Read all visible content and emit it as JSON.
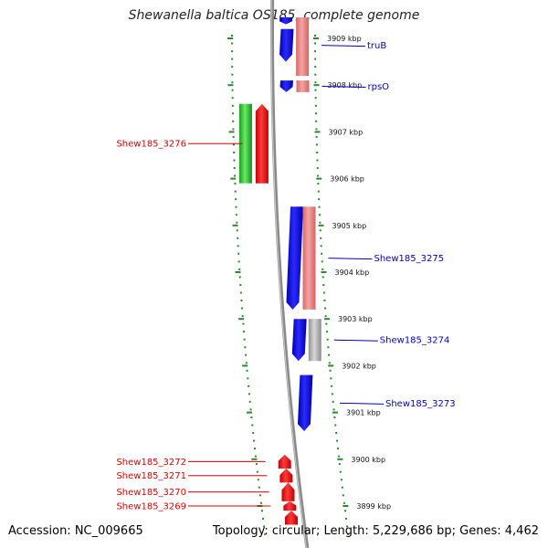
{
  "title": "Shewanella baltica OS185, complete genome",
  "footer": {
    "accession": "Accession: NC_009665",
    "summary": "Topology: circular; Length: 5,229,686 bp; Genes: 4,462"
  },
  "chart_data": {
    "type": "genome-map",
    "title": "Shewanella baltica OS185, complete genome",
    "unit": "kbp",
    "visible_range_kbp": [
      3898.6,
      3909.4
    ],
    "ticks": [
      {
        "kbp": 3909,
        "label": "3909 kbp"
      },
      {
        "kbp": 3908,
        "label": "3908 kbp"
      },
      {
        "kbp": 3907,
        "label": "3907 kbp"
      },
      {
        "kbp": 3906,
        "label": "3906 kbp"
      },
      {
        "kbp": 3905,
        "label": "3905 kbp"
      },
      {
        "kbp": 3904,
        "label": "3904 kbp"
      },
      {
        "kbp": 3903,
        "label": "3903 kbp"
      },
      {
        "kbp": 3902,
        "label": "3902 kbp"
      },
      {
        "kbp": 3901,
        "label": "3901 kbp"
      },
      {
        "kbp": 3900,
        "label": "3900 kbp"
      },
      {
        "kbp": 3899,
        "label": "3899 kbp"
      }
    ],
    "tracks": [
      {
        "id": "left-green",
        "features": [
          {
            "start_kbp": 3905.9,
            "end_kbp": 3907.6
          }
        ]
      },
      {
        "id": "left-red",
        "features": [
          {
            "start_kbp": 3905.9,
            "end_kbp": 3907.6,
            "label": "Shew185_3276"
          },
          {
            "start_kbp": 3899.8,
            "end_kbp": 3900.1,
            "label": "Shew185_3272"
          },
          {
            "start_kbp": 3899.5,
            "end_kbp": 3899.8,
            "label": "Shew185_3271"
          },
          {
            "start_kbp": 3899.1,
            "end_kbp": 3899.5,
            "label": "Shew185_3270"
          },
          {
            "start_kbp": 3898.9,
            "end_kbp": 3899.1,
            "label": "Shew185_3269"
          },
          {
            "start_kbp": 3898.6,
            "end_kbp": 3898.9
          }
        ]
      },
      {
        "id": "right-blue",
        "features": [
          {
            "start_kbp": 3909.3,
            "end_kbp": 3909.45
          },
          {
            "start_kbp": 3908.5,
            "end_kbp": 3909.2,
            "label": "truB"
          },
          {
            "start_kbp": 3907.85,
            "end_kbp": 3908.1,
            "label": "rpsO"
          },
          {
            "start_kbp": 3903.2,
            "end_kbp": 3905.4,
            "label": "Shew185_3275"
          },
          {
            "start_kbp": 3902.1,
            "end_kbp": 3903.0,
            "label": "Shew185_3274"
          },
          {
            "start_kbp": 3900.6,
            "end_kbp": 3901.8,
            "label": "Shew185_3273"
          }
        ]
      },
      {
        "id": "right-pink",
        "features": [
          {
            "start_kbp": 3908.2,
            "end_kbp": 3909.45
          },
          {
            "start_kbp": 3907.85,
            "end_kbp": 3908.1
          },
          {
            "start_kbp": 3903.2,
            "end_kbp": 3905.4
          }
        ]
      },
      {
        "id": "right-grey",
        "features": [
          {
            "start_kbp": 3902.1,
            "end_kbp": 3903.0
          }
        ]
      }
    ],
    "label_sides": {
      "left": [
        "Shew185_3276",
        "Shew185_3272",
        "Shew185_3271",
        "Shew185_3270",
        "Shew185_3269"
      ],
      "right": [
        "truB",
        "rpsO",
        "Shew185_3275",
        "Shew185_3274",
        "Shew185_3273"
      ]
    },
    "colors": {
      "left_labels": "#e00000",
      "right_labels": "#0000c0",
      "green": "#33cc33",
      "red": "#ff0000",
      "blue": "#0000ee",
      "pink": "#ee8888",
      "grey": "#b4b4b4",
      "backbone": "#8a8a8a",
      "ticks": "#2a8a2a"
    }
  }
}
